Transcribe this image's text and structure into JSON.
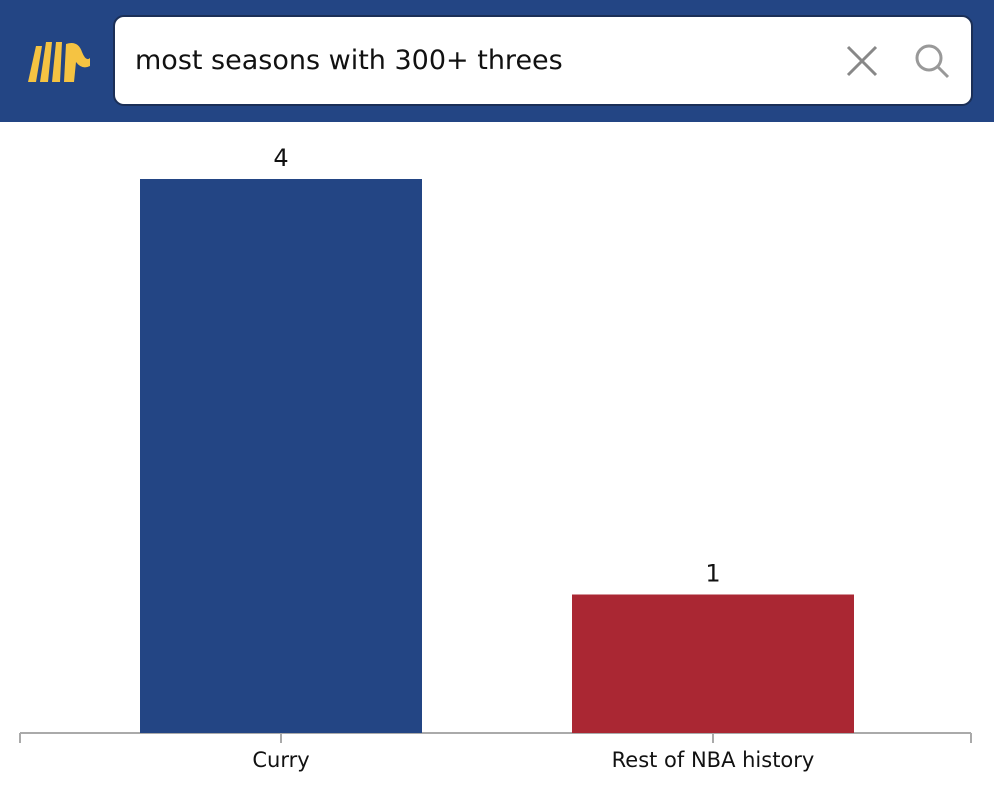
{
  "search": {
    "query": "most seasons with 300+ threes"
  },
  "chart_data": {
    "type": "bar",
    "categories": [
      "Curry",
      "Rest of NBA history"
    ],
    "values": [
      4,
      1
    ],
    "colors": [
      "#234584",
      "#aa2733"
    ]
  }
}
